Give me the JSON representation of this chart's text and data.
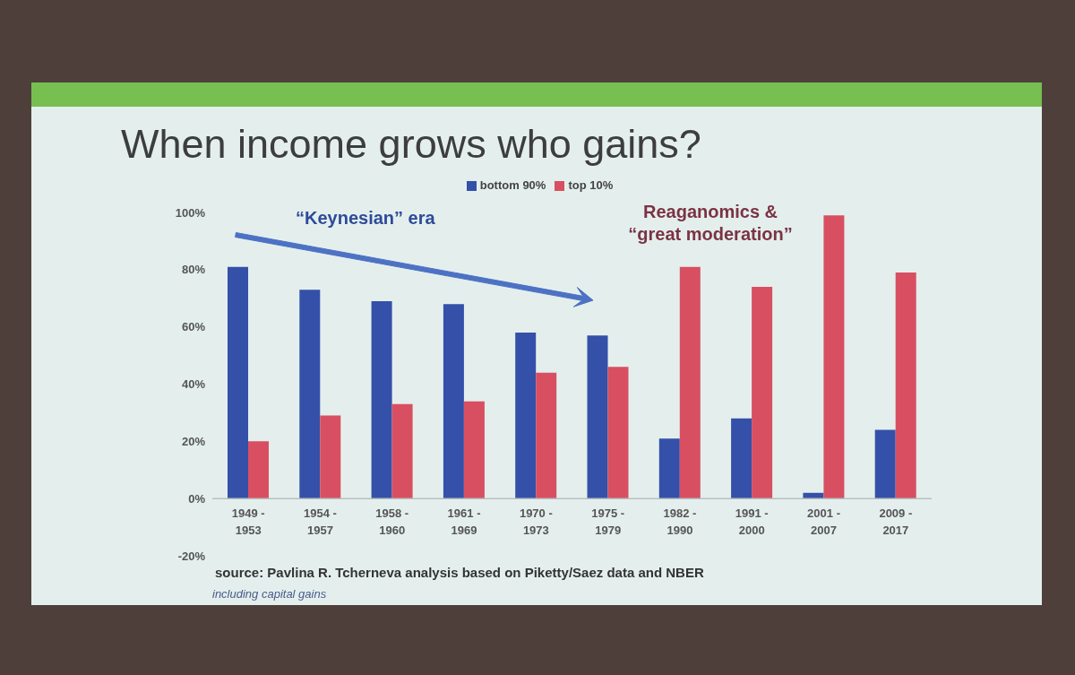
{
  "chart_data": {
    "type": "bar",
    "title": "When income grows who gains?",
    "categories": [
      "1949 - 1953",
      "1954 - 1957",
      "1958 - 1960",
      "1961 - 1969",
      "1970 - 1973",
      "1975 - 1979",
      "1982 - 1990",
      "1991 - 2000",
      "2001 - 2007",
      "2009 - 2017"
    ],
    "series": [
      {
        "name": "bottom 90%",
        "color": "#3450a8",
        "values": [
          81,
          73,
          69,
          68,
          58,
          57,
          21,
          28,
          2,
          24
        ]
      },
      {
        "name": "top 10%",
        "color": "#d84f62",
        "values": [
          20,
          29,
          33,
          34,
          44,
          46,
          81,
          74,
          99,
          79
        ]
      }
    ],
    "ylim": [
      -20,
      100
    ],
    "yticks": [
      {
        "value": -20,
        "label": "-20%"
      },
      {
        "value": 0,
        "label": "0%"
      },
      {
        "value": 20,
        "label": "20%"
      },
      {
        "value": 40,
        "label": "40%"
      },
      {
        "value": 60,
        "label": "60%"
      },
      {
        "value": 80,
        "label": "80%"
      },
      {
        "value": 100,
        "label": "100%"
      }
    ],
    "legend": "top",
    "annotations": [
      "“Keynesian” era",
      "Reaganomics & “great moderation”",
      "source: Pavlina R. Tcherneva analysis based on Piketty/Saez data and NBER",
      "including capital gains"
    ]
  }
}
